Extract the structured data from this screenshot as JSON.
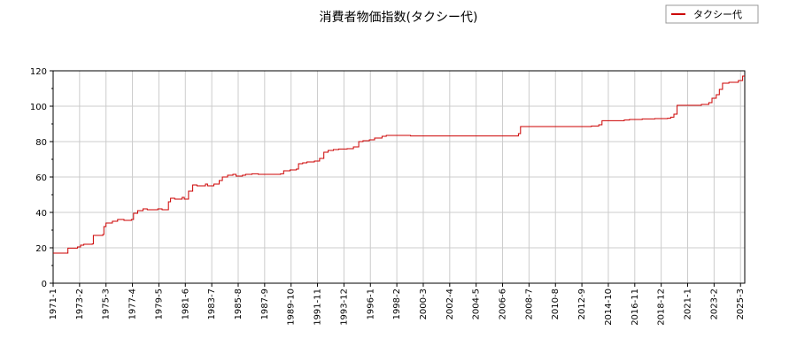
{
  "chart_data": {
    "type": "line",
    "title": "消費者物価指数(タクシー代)",
    "xlabel": "",
    "ylabel": "",
    "ylim": [
      0,
      120
    ],
    "yticks": [
      0,
      20,
      40,
      60,
      80,
      100,
      120
    ],
    "grid": true,
    "legend_position": "top-right",
    "x_tick_labels": [
      "1971-1",
      "1973-2",
      "1975-3",
      "1977-4",
      "1979-5",
      "1981-6",
      "1983-7",
      "1985-8",
      "1987-9",
      "1989-10",
      "1991-11",
      "1993-12",
      "1996-1",
      "1998-2",
      "2000-3",
      "2002-4",
      "2004-5",
      "2006-6",
      "2008-7",
      "2010-8",
      "2012-9",
      "2014-10",
      "2016-11",
      "2018-12",
      "2021-1",
      "2023-2",
      "2025-3"
    ],
    "series": [
      {
        "name": "タクシー代",
        "color": "#cc0000",
        "points": [
          [
            "1971-1",
            17
          ],
          [
            "1972-2",
            17
          ],
          [
            "1972-3",
            19.8
          ],
          [
            "1972-12",
            20.5
          ],
          [
            "1973-3",
            21.5
          ],
          [
            "1973-6",
            22
          ],
          [
            "1974-2",
            22.2
          ],
          [
            "1974-3",
            27
          ],
          [
            "1974-12",
            27.5
          ],
          [
            "1975-1",
            32
          ],
          [
            "1975-3",
            34
          ],
          [
            "1975-9",
            35
          ],
          [
            "1976-2",
            36
          ],
          [
            "1976-8",
            35.5
          ],
          [
            "1977-3",
            36
          ],
          [
            "1977-5",
            39.5
          ],
          [
            "1977-9",
            41
          ],
          [
            "1978-2",
            42
          ],
          [
            "1978-6",
            41.5
          ],
          [
            "1979-4",
            42
          ],
          [
            "1979-8",
            41.5
          ],
          [
            "1980-2",
            46
          ],
          [
            "1980-4",
            48
          ],
          [
            "1980-8",
            47.5
          ],
          [
            "1981-3",
            48.5
          ],
          [
            "1981-5",
            47.5
          ],
          [
            "1981-9",
            52
          ],
          [
            "1982-1",
            55.5
          ],
          [
            "1982-5",
            55
          ],
          [
            "1983-1",
            56
          ],
          [
            "1983-3",
            55
          ],
          [
            "1983-9",
            56
          ],
          [
            "1984-2",
            58
          ],
          [
            "1984-5",
            60
          ],
          [
            "1984-10",
            61
          ],
          [
            "1985-3",
            61.5
          ],
          [
            "1985-6",
            60.5
          ],
          [
            "1985-12",
            61
          ],
          [
            "1986-3",
            61.5
          ],
          [
            "1986-9",
            61.8
          ],
          [
            "1987-3",
            61.5
          ],
          [
            "1988-6",
            61.5
          ],
          [
            "1988-12",
            61.8
          ],
          [
            "1989-3",
            63.5
          ],
          [
            "1989-9",
            64
          ],
          [
            "1990-3",
            64.5
          ],
          [
            "1990-5",
            67.5
          ],
          [
            "1990-9",
            68
          ],
          [
            "1991-1",
            68.5
          ],
          [
            "1991-8",
            69
          ],
          [
            "1992-1",
            70.5
          ],
          [
            "1992-5",
            74
          ],
          [
            "1992-9",
            75
          ],
          [
            "1993-2",
            75.5
          ],
          [
            "1993-7",
            75.8
          ],
          [
            "1994-3",
            76
          ],
          [
            "1994-9",
            77
          ],
          [
            "1995-2",
            80
          ],
          [
            "1995-6",
            80.5
          ],
          [
            "1995-12",
            81
          ],
          [
            "1996-5",
            82
          ],
          [
            "1996-12",
            83
          ],
          [
            "1997-4",
            83.5
          ],
          [
            "1998-6",
            83.5
          ],
          [
            "1999-3",
            83.2
          ],
          [
            "2007-6",
            83.2
          ],
          [
            "2007-9",
            84.5
          ],
          [
            "2007-11",
            88.5
          ],
          [
            "2013-6",
            88.8
          ],
          [
            "2014-1",
            89.5
          ],
          [
            "2014-4",
            91.8
          ],
          [
            "2016-1",
            92.2
          ],
          [
            "2016-6",
            92.5
          ],
          [
            "2017-6",
            92.8
          ],
          [
            "2018-6",
            93
          ],
          [
            "2019-6",
            93.2
          ],
          [
            "2019-9",
            93.8
          ],
          [
            "2019-12",
            95.5
          ],
          [
            "2020-3",
            100.5
          ],
          [
            "2022-2",
            101
          ],
          [
            "2022-9",
            102
          ],
          [
            "2022-12",
            104.5
          ],
          [
            "2023-4",
            106.5
          ],
          [
            "2023-7",
            109.5
          ],
          [
            "2023-10",
            113
          ],
          [
            "2024-4",
            113.5
          ],
          [
            "2024-10",
            113.5
          ],
          [
            "2025-1",
            114.5
          ],
          [
            "2025-5",
            117
          ]
        ]
      }
    ]
  }
}
